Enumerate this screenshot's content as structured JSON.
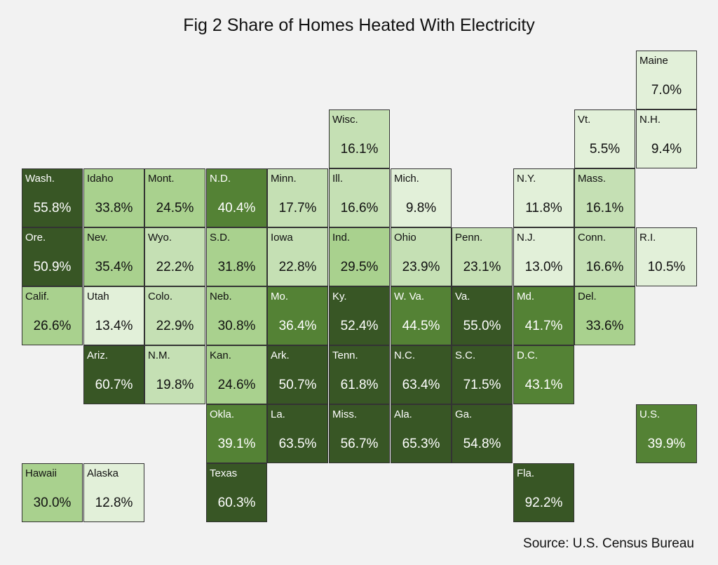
{
  "title": "Fig 2 Share of Homes Heated With Electricity",
  "source": "Source: U.S. Census Bureau",
  "chart_data": {
    "type": "heatmap",
    "title": "Fig 2 Share of Homes Heated With Electricity",
    "unit": "%",
    "colors": {
      "darkest": "#385625",
      "dark": "#548235",
      "medium": "#a9d18e",
      "light": "#c5e0b4",
      "lightest": "#e2f0d9"
    },
    "tiles": [
      {
        "label": "Maine",
        "value": 7.0,
        "text": "7.0%",
        "row": 0,
        "col": 10
      },
      {
        "label": "Wisc.",
        "value": 16.1,
        "text": "16.1%",
        "row": 1,
        "col": 5
      },
      {
        "label": "Vt.",
        "value": 5.5,
        "text": "5.5%",
        "row": 1,
        "col": 9
      },
      {
        "label": "N.H.",
        "value": 9.4,
        "text": "9.4%",
        "row": 1,
        "col": 10
      },
      {
        "label": "Wash.",
        "value": 55.8,
        "text": "55.8%",
        "row": 2,
        "col": 0
      },
      {
        "label": "Idaho",
        "value": 33.8,
        "text": "33.8%",
        "row": 2,
        "col": 1
      },
      {
        "label": "Mont.",
        "value": 24.5,
        "text": "24.5%",
        "row": 2,
        "col": 2
      },
      {
        "label": "N.D.",
        "value": 40.4,
        "text": "40.4%",
        "row": 2,
        "col": 3
      },
      {
        "label": "Minn.",
        "value": 17.7,
        "text": "17.7%",
        "row": 2,
        "col": 4
      },
      {
        "label": "Ill.",
        "value": 16.6,
        "text": "16.6%",
        "row": 2,
        "col": 5
      },
      {
        "label": "Mich.",
        "value": 9.8,
        "text": "9.8%",
        "row": 2,
        "col": 6
      },
      {
        "label": "N.Y.",
        "value": 11.8,
        "text": "11.8%",
        "row": 2,
        "col": 8
      },
      {
        "label": "Mass.",
        "value": 16.1,
        "text": "16.1%",
        "row": 2,
        "col": 9
      },
      {
        "label": "Ore.",
        "value": 50.9,
        "text": "50.9%",
        "row": 3,
        "col": 0
      },
      {
        "label": "Nev.",
        "value": 35.4,
        "text": "35.4%",
        "row": 3,
        "col": 1
      },
      {
        "label": "Wyo.",
        "value": 22.2,
        "text": "22.2%",
        "row": 3,
        "col": 2
      },
      {
        "label": "S.D.",
        "value": 31.8,
        "text": "31.8%",
        "row": 3,
        "col": 3
      },
      {
        "label": "Iowa",
        "value": 22.8,
        "text": "22.8%",
        "row": 3,
        "col": 4
      },
      {
        "label": "Ind.",
        "value": 29.5,
        "text": "29.5%",
        "row": 3,
        "col": 5
      },
      {
        "label": "Ohio",
        "value": 23.9,
        "text": "23.9%",
        "row": 3,
        "col": 6
      },
      {
        "label": "Penn.",
        "value": 23.1,
        "text": "23.1%",
        "row": 3,
        "col": 7
      },
      {
        "label": "N.J.",
        "value": 13.0,
        "text": "13.0%",
        "row": 3,
        "col": 8
      },
      {
        "label": "Conn.",
        "value": 16.6,
        "text": "16.6%",
        "row": 3,
        "col": 9
      },
      {
        "label": "R.I.",
        "value": 10.5,
        "text": "10.5%",
        "row": 3,
        "col": 10
      },
      {
        "label": "Calif.",
        "value": 26.6,
        "text": "26.6%",
        "row": 4,
        "col": 0
      },
      {
        "label": "Utah",
        "value": 13.4,
        "text": "13.4%",
        "row": 4,
        "col": 1
      },
      {
        "label": "Colo.",
        "value": 22.9,
        "text": "22.9%",
        "row": 4,
        "col": 2
      },
      {
        "label": "Neb.",
        "value": 30.8,
        "text": "30.8%",
        "row": 4,
        "col": 3
      },
      {
        "label": "Mo.",
        "value": 36.4,
        "text": "36.4%",
        "row": 4,
        "col": 4
      },
      {
        "label": "Ky.",
        "value": 52.4,
        "text": "52.4%",
        "row": 4,
        "col": 5
      },
      {
        "label": "W. Va.",
        "value": 44.5,
        "text": "44.5%",
        "row": 4,
        "col": 6
      },
      {
        "label": "Va.",
        "value": 55.0,
        "text": "55.0%",
        "row": 4,
        "col": 7
      },
      {
        "label": "Md.",
        "value": 41.7,
        "text": "41.7%",
        "row": 4,
        "col": 8
      },
      {
        "label": "Del.",
        "value": 33.6,
        "text": "33.6%",
        "row": 4,
        "col": 9
      },
      {
        "label": "Ariz.",
        "value": 60.7,
        "text": "60.7%",
        "row": 5,
        "col": 1
      },
      {
        "label": "N.M.",
        "value": 19.8,
        "text": "19.8%",
        "row": 5,
        "col": 2
      },
      {
        "label": "Kan.",
        "value": 24.6,
        "text": "24.6%",
        "row": 5,
        "col": 3
      },
      {
        "label": "Ark.",
        "value": 50.7,
        "text": "50.7%",
        "row": 5,
        "col": 4
      },
      {
        "label": "Tenn.",
        "value": 61.8,
        "text": "61.8%",
        "row": 5,
        "col": 5
      },
      {
        "label": "N.C.",
        "value": 63.4,
        "text": "63.4%",
        "row": 5,
        "col": 6
      },
      {
        "label": "S.C.",
        "value": 71.5,
        "text": "71.5%",
        "row": 5,
        "col": 7
      },
      {
        "label": "D.C.",
        "value": 43.1,
        "text": "43.1%",
        "row": 5,
        "col": 8
      },
      {
        "label": "Okla.",
        "value": 39.1,
        "text": "39.1%",
        "row": 6,
        "col": 3
      },
      {
        "label": "La.",
        "value": 63.5,
        "text": "63.5%",
        "row": 6,
        "col": 4
      },
      {
        "label": "Miss.",
        "value": 56.7,
        "text": "56.7%",
        "row": 6,
        "col": 5
      },
      {
        "label": "Ala.",
        "value": 65.3,
        "text": "65.3%",
        "row": 6,
        "col": 6
      },
      {
        "label": "Ga.",
        "value": 54.8,
        "text": "54.8%",
        "row": 6,
        "col": 7
      },
      {
        "label": "U.S.",
        "value": 39.9,
        "text": "39.9%",
        "row": 6,
        "col": 10
      },
      {
        "label": "Hawaii",
        "value": 30.0,
        "text": "30.0%",
        "row": 7,
        "col": 0
      },
      {
        "label": "Alaska",
        "value": 12.8,
        "text": "12.8%",
        "row": 7,
        "col": 1
      },
      {
        "label": "Texas",
        "value": 60.3,
        "text": "60.3%",
        "row": 7,
        "col": 3
      },
      {
        "label": "Fla.",
        "value": 92.2,
        "text": "92.2%",
        "row": 7,
        "col": 8
      }
    ]
  }
}
